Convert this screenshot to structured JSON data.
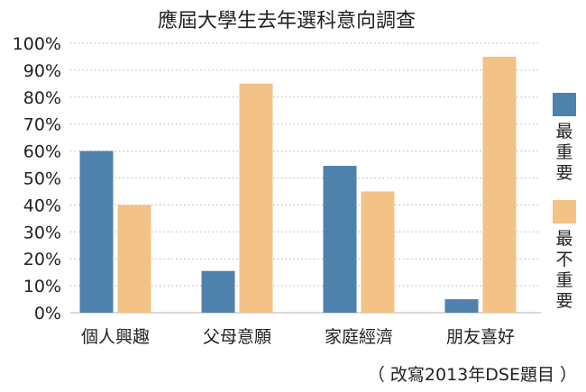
{
  "chart_data": {
    "type": "bar",
    "title": "應屆大學生去年選科意向調查",
    "categories": [
      "個人興趣",
      "父母意願",
      "家庭經濟",
      "朋友喜好"
    ],
    "series": [
      {
        "name": "最重要",
        "values": [
          60,
          15.5,
          54.5,
          5
        ],
        "color": "#4f81ad"
      },
      {
        "name": "最不重要",
        "values": [
          40,
          85,
          45,
          95
        ],
        "color": "#f2c287"
      }
    ],
    "y_ticks": [
      "0%",
      "10%",
      "20%",
      "30%",
      "40%",
      "50%",
      "60%",
      "70%",
      "80%",
      "90%",
      "100%"
    ],
    "ylim": [
      0,
      100
    ],
    "grid": true,
    "legend_position": "right",
    "xlabel": "",
    "ylabel": "",
    "source_note": "（ 改寫2013年DSE題目 ）"
  }
}
